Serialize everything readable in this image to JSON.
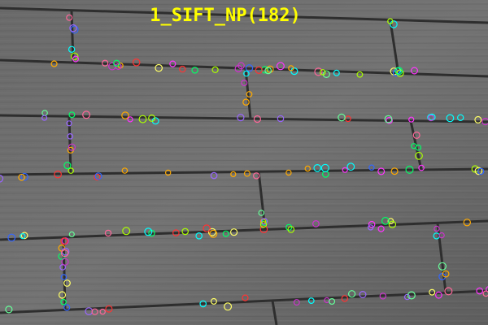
{
  "image": {
    "caption": "1_SIFT_NP(182)"
  }
}
